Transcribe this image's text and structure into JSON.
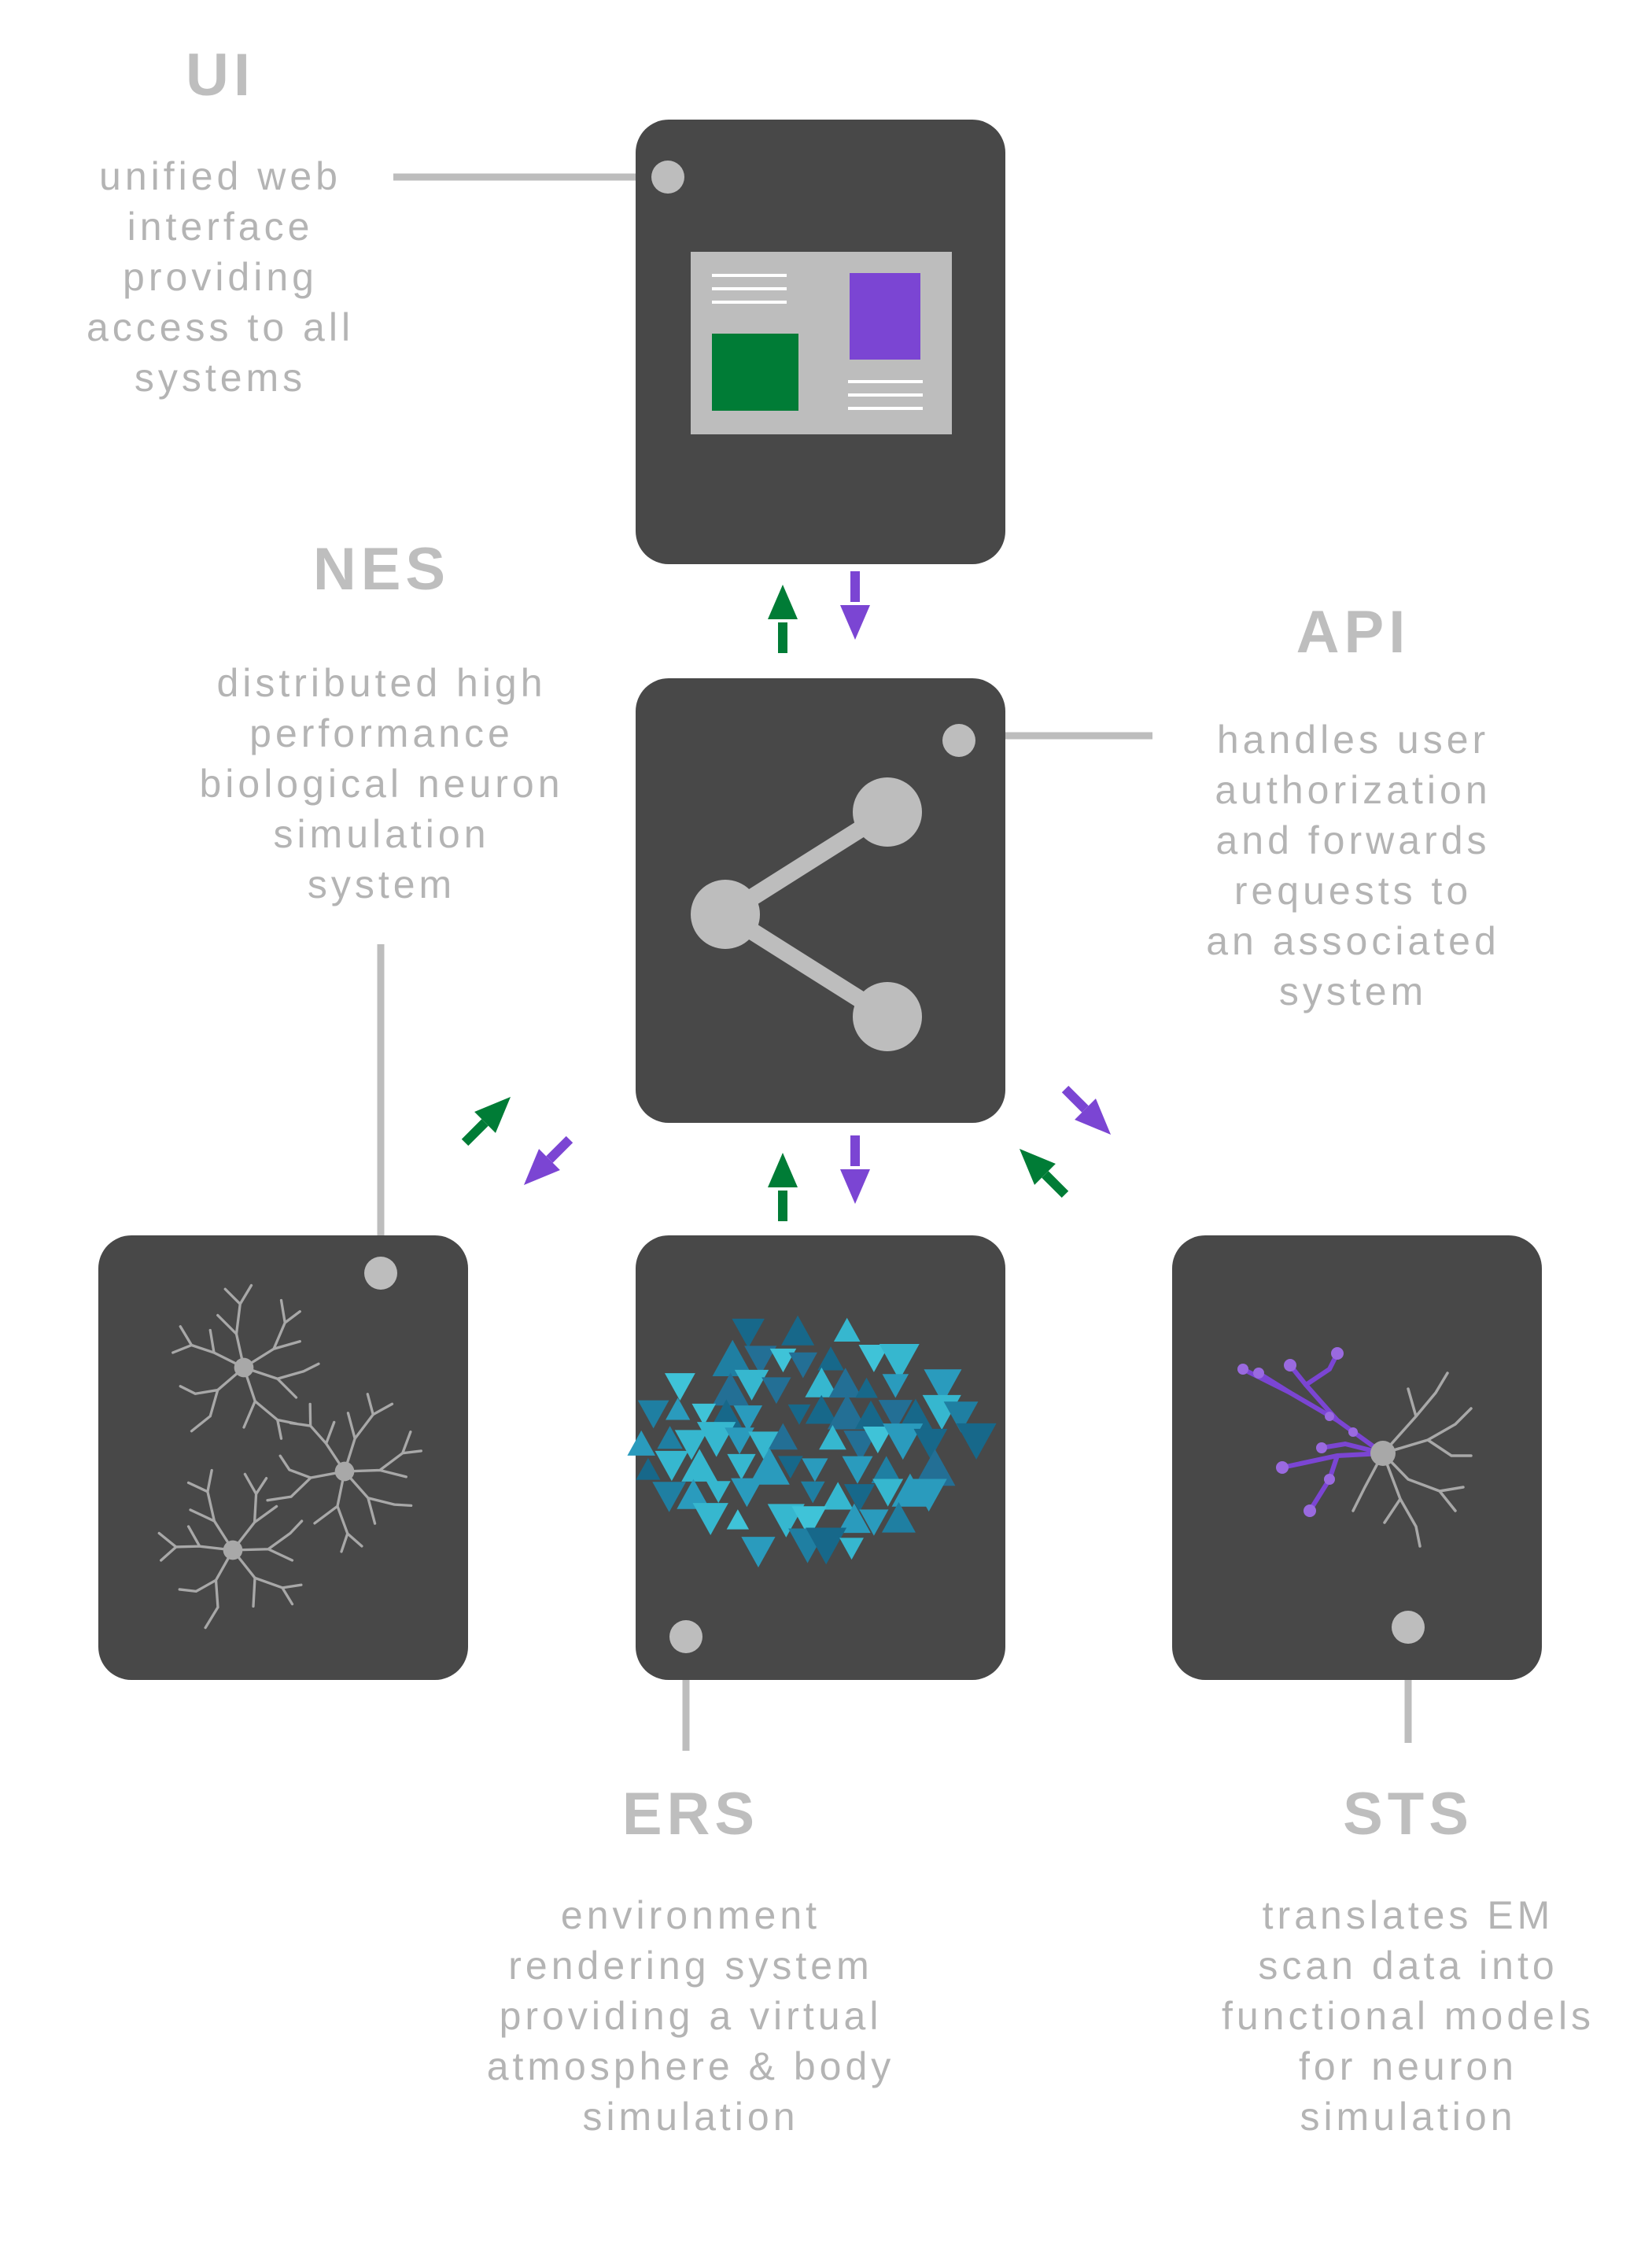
{
  "colors": {
    "box": "#484848",
    "connector": "#bdbdbd",
    "up_arrow": "#007c36",
    "down_arrow": "#7b45d3",
    "text_title": "#bebebe",
    "text_desc": "#b4b4b4"
  },
  "systems": {
    "ui": {
      "title": "UI",
      "desc_lines": [
        "unified web",
        "interface",
        "providing",
        "access to all",
        "systems"
      ],
      "icon": "web-interface-icon"
    },
    "api": {
      "title": "API",
      "desc_lines": [
        "handles user",
        "authorization",
        "and forwards",
        "requests to",
        "an associated",
        "system"
      ],
      "icon": "share-network-icon"
    },
    "nes": {
      "title": "NES",
      "desc_lines": [
        "distributed high",
        "performance",
        "biological neuron",
        "simulation",
        "system"
      ],
      "icon": "neuron-network-icon"
    },
    "ers": {
      "title": "ERS",
      "desc_lines": [
        "environment",
        "rendering system",
        "providing a virtual",
        "atmosphere & body",
        "simulation"
      ],
      "icon": "triangle-mesh-icon"
    },
    "sts": {
      "title": "STS",
      "desc_lines": [
        "translates EM",
        "scan data into",
        "functional models",
        "for neuron",
        "simulation"
      ],
      "icon": "traced-neuron-icon"
    }
  },
  "arrows": [
    {
      "from": "api",
      "to": "ui",
      "color_key": "up_arrow",
      "icon": "arrow-up-icon"
    },
    {
      "from": "ui",
      "to": "api",
      "color_key": "down_arrow",
      "icon": "arrow-down-icon"
    },
    {
      "from": "nes",
      "to": "api",
      "color_key": "up_arrow",
      "icon": "arrow-up-right-icon"
    },
    {
      "from": "api",
      "to": "nes",
      "color_key": "down_arrow",
      "icon": "arrow-down-left-icon"
    },
    {
      "from": "ers",
      "to": "api",
      "color_key": "up_arrow",
      "icon": "arrow-up-icon"
    },
    {
      "from": "api",
      "to": "ers",
      "color_key": "down_arrow",
      "icon": "arrow-down-icon"
    },
    {
      "from": "api",
      "to": "sts",
      "color_key": "down_arrow",
      "icon": "arrow-down-right-icon"
    },
    {
      "from": "sts",
      "to": "api",
      "color_key": "up_arrow",
      "icon": "arrow-up-left-icon"
    }
  ]
}
